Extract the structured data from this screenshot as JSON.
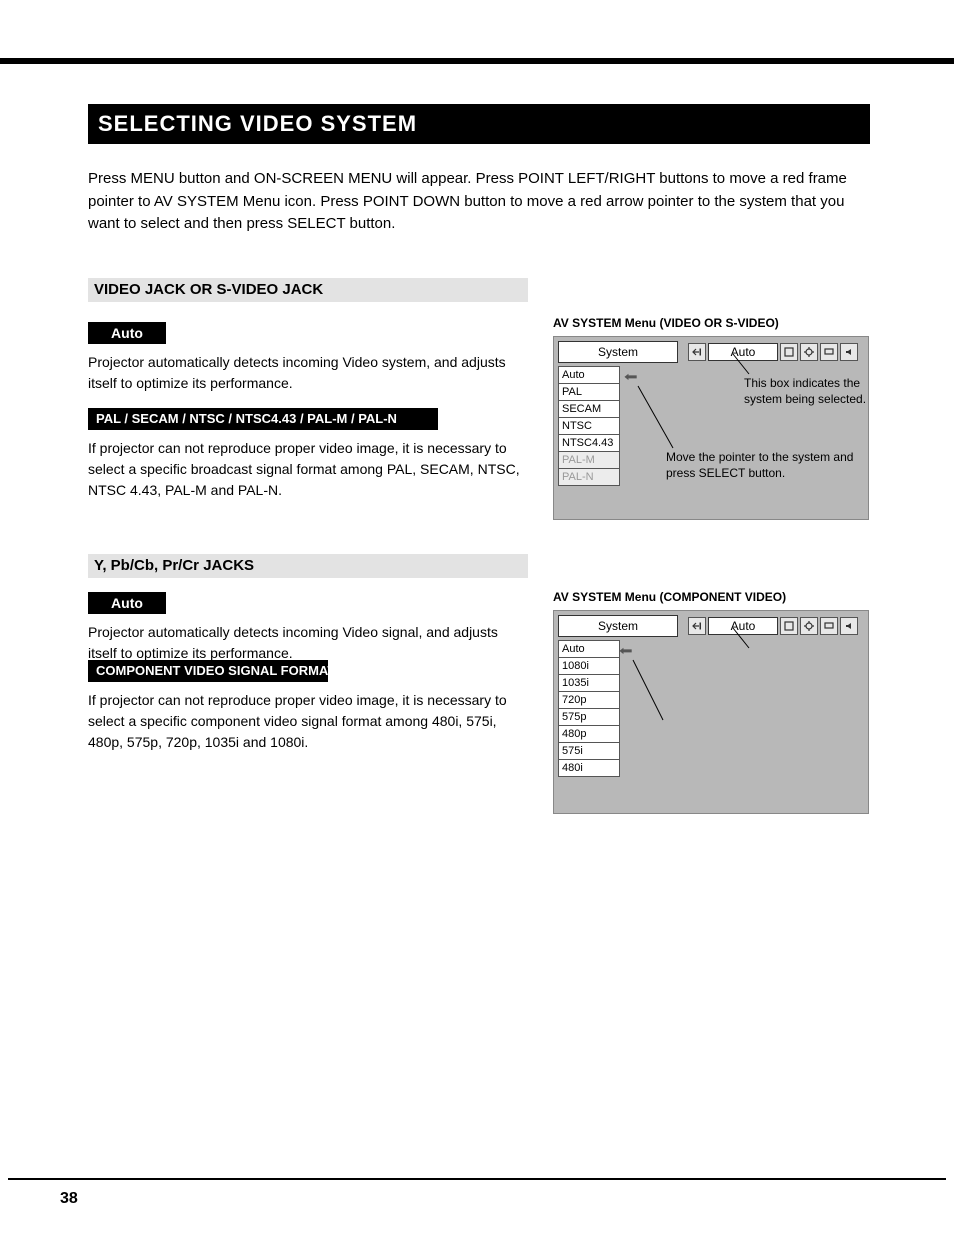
{
  "title": "SELECTING VIDEO SYSTEM",
  "intro": "Press MENU button and ON-SCREEN MENU will appear. Press POINT LEFT/RIGHT buttons to move a red frame pointer to AV SYSTEM Menu icon.  Press POINT DOWN button to move a red arrow pointer to the system that you want to select and then press SELECT button.",
  "section1": {
    "heading": "VIDEO JACK OR S-VIDEO JACK",
    "auto_label": "Auto",
    "auto_text": "Projector automatically detects incoming Video system, and adjusts itself to optimize its performance.",
    "systems_bar": "PAL / SECAM / NTSC / NTSC4.43 / PAL-M / PAL-N",
    "systems_text": "If projector can not reproduce proper video image, it is necessary to select a specific broadcast signal format among PAL, SECAM, NTSC, NTSC 4.43, PAL-M and PAL-N."
  },
  "section2": {
    "heading": "Y, Pb/Cb, Pr/Cr JACKS",
    "auto_label": "Auto",
    "auto_text": "Projector automatically detects incoming Video signal, and adjusts itself to optimize its performance.",
    "systems_bar": "COMPONENT VIDEO SIGNAL FORMAT",
    "systems_text": "If projector can not reproduce proper video image, it is necessary to select a specific component video signal format among 480i, 575i, 480p, 575p, 720p, 1035i and 1080i."
  },
  "panel1": {
    "system_label": "System",
    "selected": "Auto",
    "items": [
      {
        "label": "Auto",
        "disabled": false
      },
      {
        "label": "PAL",
        "disabled": false
      },
      {
        "label": "SECAM",
        "disabled": false
      },
      {
        "label": "NTSC",
        "disabled": false
      },
      {
        "label": "NTSC4.43",
        "disabled": false
      },
      {
        "label": "PAL-M",
        "disabled": true
      },
      {
        "label": "PAL-N",
        "disabled": true
      }
    ],
    "anno_top": "AV SYSTEM Menu (VIDEO OR S-VIDEO)",
    "anno_sel": "This box indicates the system being selected.",
    "anno_ptr": "Move the pointer to the system and press SELECT button."
  },
  "panel2": {
    "system_label": "System",
    "selected": "Auto",
    "items": [
      {
        "label": "Auto",
        "disabled": false
      },
      {
        "label": "1080i",
        "disabled": false
      },
      {
        "label": "1035i",
        "disabled": false
      },
      {
        "label": "720p",
        "disabled": false
      },
      {
        "label": "575p",
        "disabled": false
      },
      {
        "label": "480p",
        "disabled": false
      },
      {
        "label": "575i",
        "disabled": false
      },
      {
        "label": "480i",
        "disabled": false
      }
    ],
    "anno_top": "AV SYSTEM Menu (COMPONENT VIDEO)"
  },
  "page_number": "38"
}
